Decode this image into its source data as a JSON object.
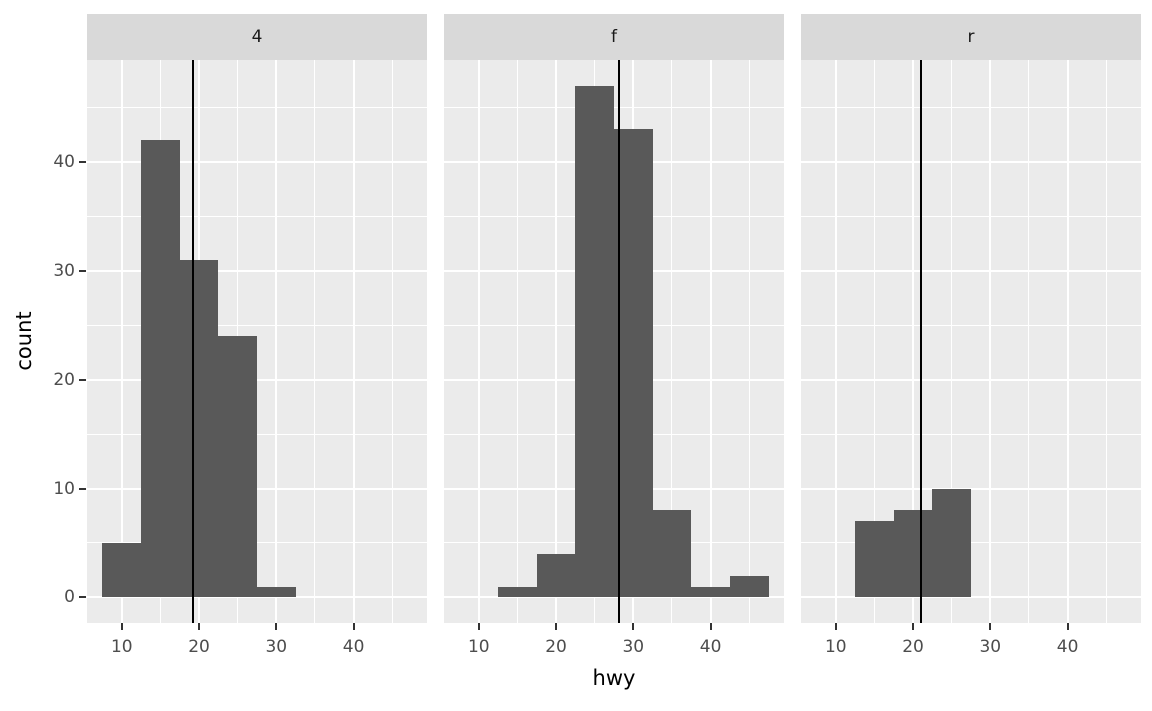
{
  "chart_data": {
    "type": "histogram",
    "title": "",
    "xlabel": "hwy",
    "ylabel": "count",
    "facet_variable_values": [
      "4",
      "f",
      "r"
    ],
    "binwidth": 5,
    "x_major_ticks": [
      10,
      20,
      30,
      40
    ],
    "x_minor_gridlines": [
      15,
      25,
      35,
      45
    ],
    "y_major_ticks": [
      0,
      10,
      20,
      30,
      40
    ],
    "y_minor_gridlines": [
      5,
      15,
      25,
      35,
      45
    ],
    "xlim": [
      5.5,
      49.5
    ],
    "ylim": [
      -2.35,
      49.35
    ],
    "grid": true,
    "legend": false,
    "facets": [
      {
        "label": "4",
        "mean_vline_x": 19.17,
        "bins": [
          {
            "x0": 7.5,
            "x1": 12.5,
            "count": 5
          },
          {
            "x0": 12.5,
            "x1": 17.5,
            "count": 42
          },
          {
            "x0": 17.5,
            "x1": 22.5,
            "count": 31
          },
          {
            "x0": 22.5,
            "x1": 27.5,
            "count": 24
          },
          {
            "x0": 27.5,
            "x1": 32.5,
            "count": 1
          }
        ]
      },
      {
        "label": "f",
        "mean_vline_x": 28.16,
        "bins": [
          {
            "x0": 12.5,
            "x1": 17.5,
            "count": 1
          },
          {
            "x0": 17.5,
            "x1": 22.5,
            "count": 4
          },
          {
            "x0": 22.5,
            "x1": 27.5,
            "count": 47
          },
          {
            "x0": 27.5,
            "x1": 32.5,
            "count": 43
          },
          {
            "x0": 32.5,
            "x1": 37.5,
            "count": 8
          },
          {
            "x0": 37.5,
            "x1": 42.5,
            "count": 1
          },
          {
            "x0": 42.5,
            "x1": 47.5,
            "count": 2
          }
        ]
      },
      {
        "label": "r",
        "mean_vline_x": 21.0,
        "bins": [
          {
            "x0": 12.5,
            "x1": 17.5,
            "count": 7
          },
          {
            "x0": 17.5,
            "x1": 22.5,
            "count": 8
          },
          {
            "x0": 22.5,
            "x1": 27.5,
            "count": 10
          }
        ]
      }
    ],
    "colors": {
      "background": "#ffffff",
      "panel_background": "#ebebeb",
      "strip_background": "#d9d9d9",
      "bar_fill": "#595959",
      "gridline": "#ffffff",
      "mean_line": "#000000",
      "axis_text": "#4d4d4d",
      "tick_mark": "#333333",
      "axis_title": "#000000"
    }
  }
}
